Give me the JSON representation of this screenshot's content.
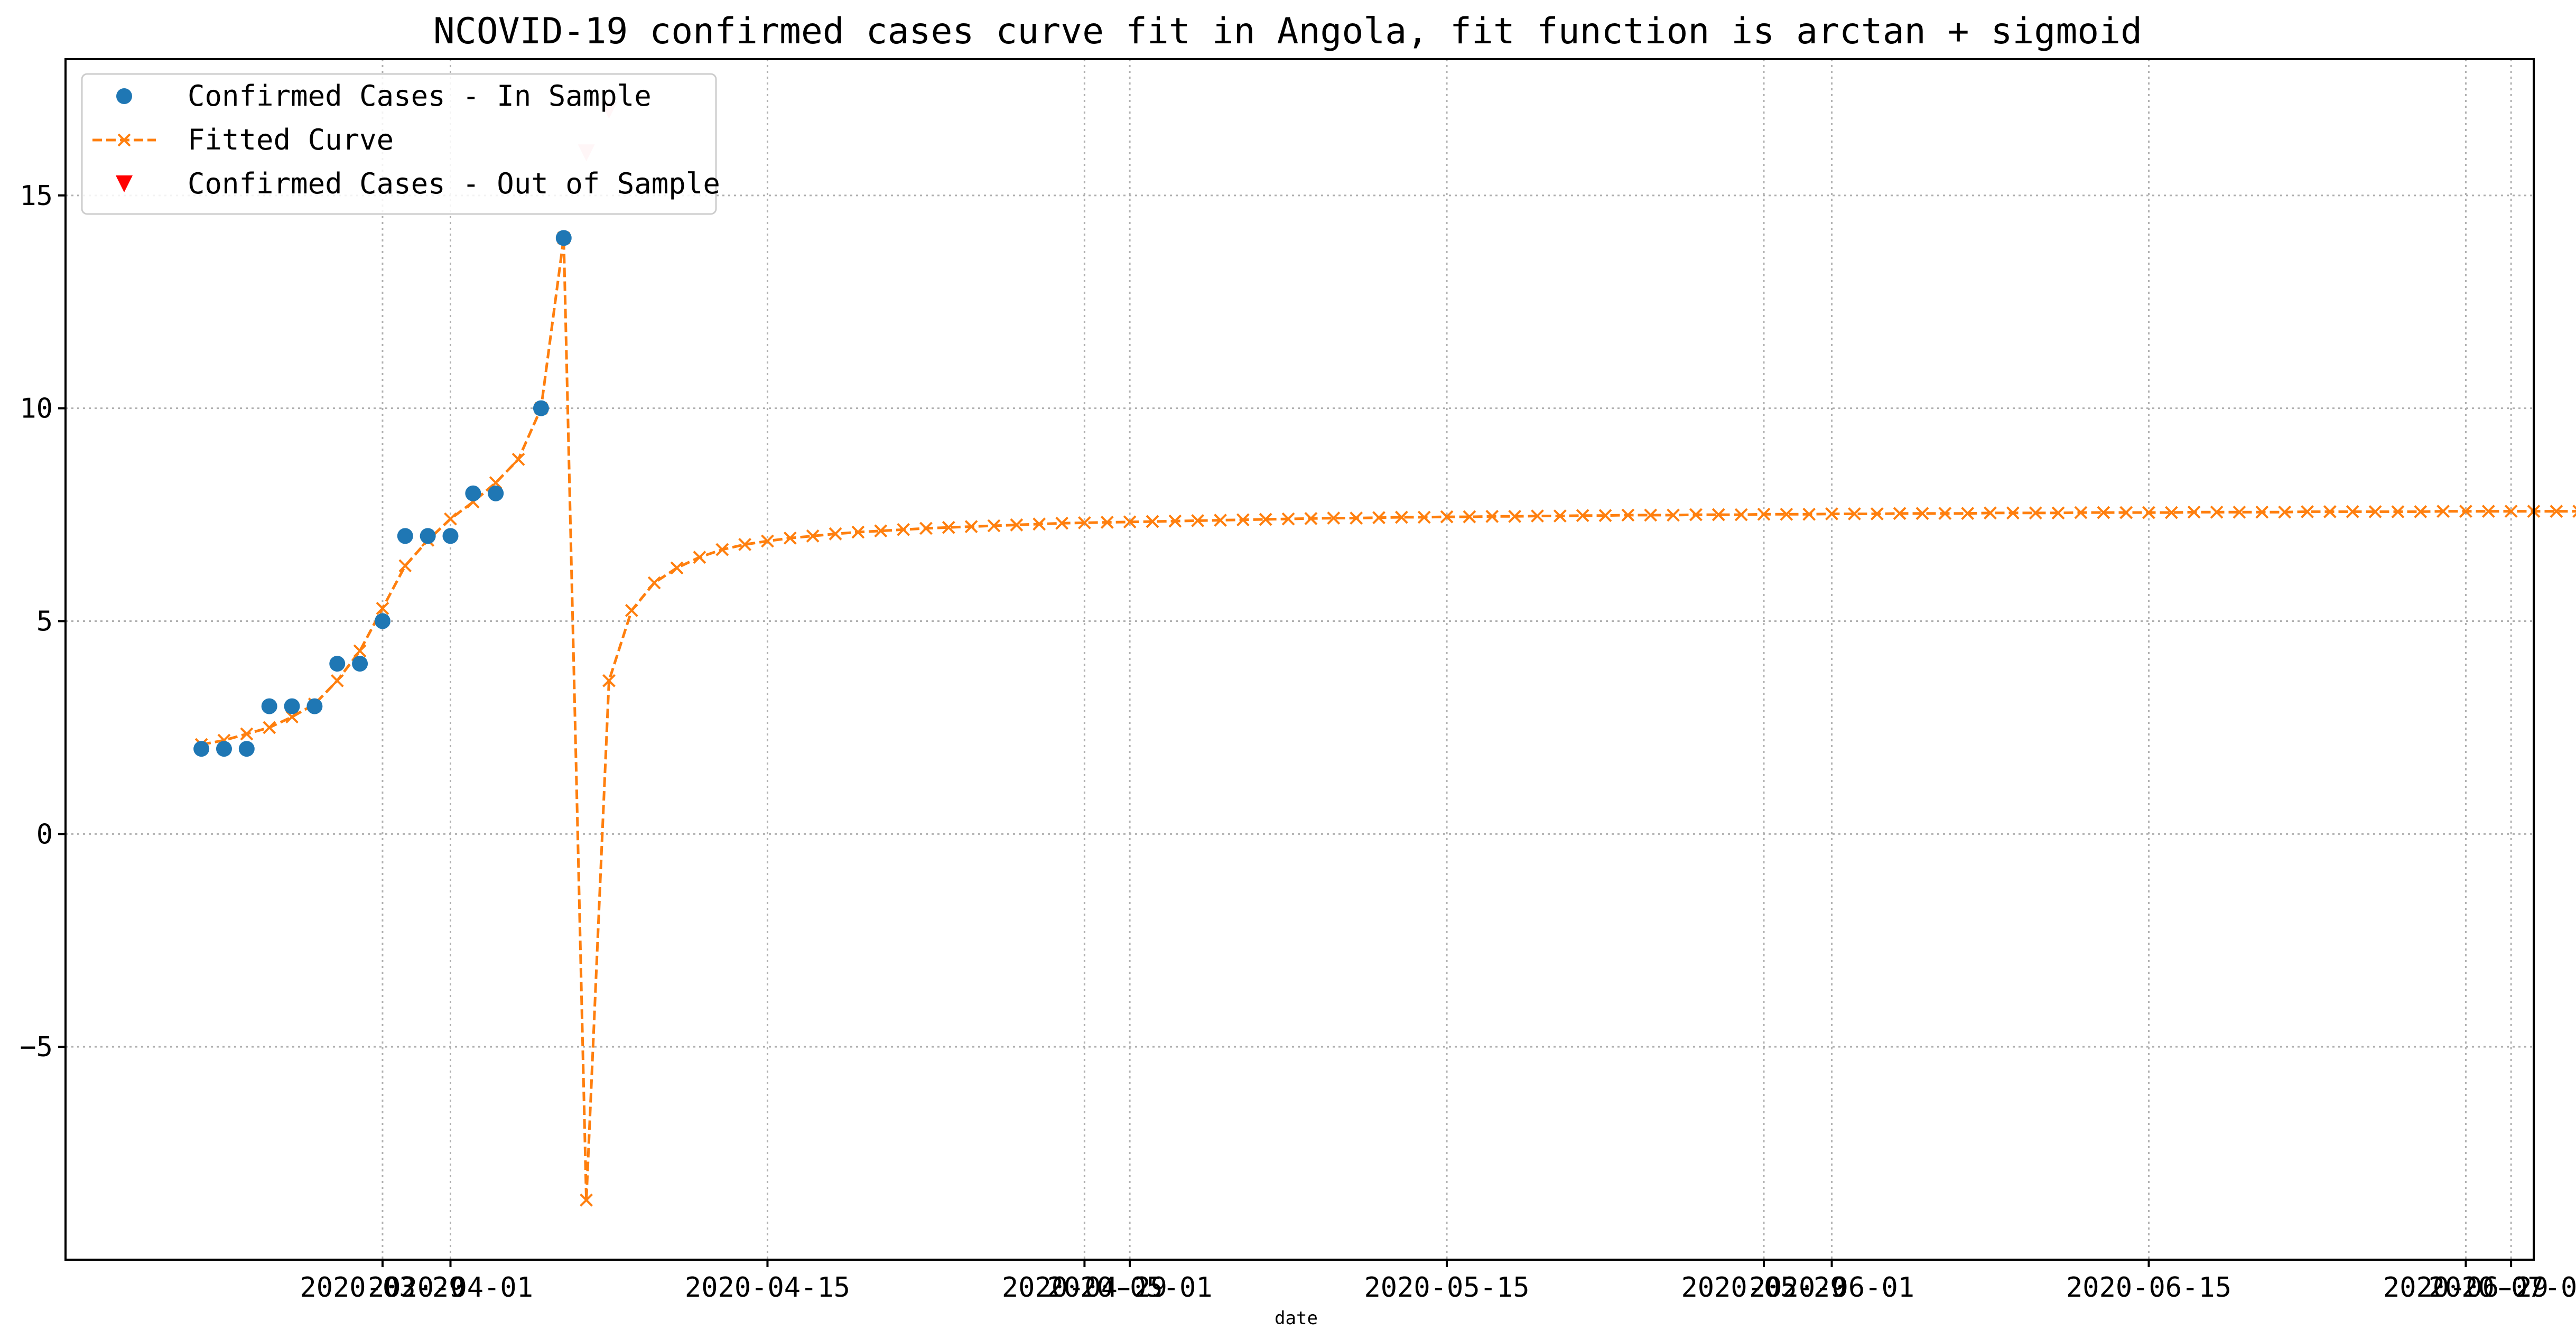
{
  "chart_data": {
    "type": "line",
    "title": "NCOVID-19 confirmed cases curve fit in Angola, fit function is arctan + sigmoid",
    "xlabel": "date",
    "ylabel": "",
    "xlim": [
      "2020-03-15",
      "2020-07-02"
    ],
    "ylim": [
      -10,
      18.2
    ],
    "grid": true,
    "legend_position": "top-left",
    "x_ticks": [
      "2020-03-29",
      "2020-04-01",
      "2020-04-15",
      "2020-04-29",
      "2020-05-01",
      "2020-05-15",
      "2020-05-29",
      "2020-06-01",
      "2020-06-15",
      "2020-06-29",
      "2020-07-01"
    ],
    "y_ticks": [
      -5,
      0,
      5,
      10,
      15
    ],
    "y_tick_labels": [
      "−5",
      "0",
      "5",
      "10",
      "15"
    ],
    "legend": [
      "Confirmed Cases - In Sample",
      "Fitted Curve",
      "Confirmed Cases - Out of Sample"
    ],
    "colors": {
      "in_sample": "#1f77b4",
      "fitted": "#ff7f0e",
      "out_of_sample": "#ff0000",
      "out_of_sample_faded": "#ffc0cb"
    },
    "series": [
      {
        "name": "Confirmed Cases - In Sample",
        "style": "markers-circle",
        "x": [
          "2020-03-21",
          "2020-03-22",
          "2020-03-23",
          "2020-03-24",
          "2020-03-25",
          "2020-03-26",
          "2020-03-27",
          "2020-03-28",
          "2020-03-29",
          "2020-03-30",
          "2020-03-31",
          "2020-04-01",
          "2020-04-02",
          "2020-04-03",
          "2020-04-05",
          "2020-04-06"
        ],
        "y": [
          2,
          2,
          2,
          3,
          3,
          3,
          4,
          4,
          5,
          7,
          7,
          7,
          8,
          8,
          10,
          14
        ]
      },
      {
        "name": "Fitted Curve",
        "style": "dashed-line-x-markers",
        "start_date": "2020-03-21",
        "y": [
          2.1,
          2.2,
          2.35,
          2.5,
          2.75,
          3.05,
          3.6,
          4.3,
          5.3,
          6.3,
          6.9,
          7.4,
          7.8,
          8.25,
          8.8,
          10.0,
          14.0,
          -8.6,
          3.6,
          5.25,
          5.9,
          6.25,
          6.5,
          6.68,
          6.8,
          6.88,
          6.95,
          7.0,
          7.05,
          7.09,
          7.12,
          7.15,
          7.18,
          7.2,
          7.22,
          7.24,
          7.26,
          7.28,
          7.3,
          7.31,
          7.32,
          7.33,
          7.34,
          7.35,
          7.36,
          7.37,
          7.38,
          7.39,
          7.4,
          7.41,
          7.42,
          7.42,
          7.43,
          7.44,
          7.44,
          7.45,
          7.45,
          7.46,
          7.46,
          7.47,
          7.47,
          7.48,
          7.48,
          7.49,
          7.49,
          7.49,
          7.5,
          7.5,
          7.5,
          7.51,
          7.51,
          7.51,
          7.52,
          7.52,
          7.52,
          7.53,
          7.53,
          7.53,
          7.53,
          7.54,
          7.54,
          7.54,
          7.54,
          7.55,
          7.55,
          7.55,
          7.55,
          7.55,
          7.56,
          7.56,
          7.56,
          7.56,
          7.56,
          7.57,
          7.57,
          7.57,
          7.57,
          7.57,
          7.57,
          7.58,
          7.58,
          7.58,
          7.58,
          7.58,
          7.58,
          7.58,
          7.59,
          7.59,
          7.59,
          7.59,
          7.59,
          7.59,
          7.59,
          7.59,
          7.6,
          7.6,
          7.6,
          7.6,
          7.6,
          7.6,
          7.6,
          7.6,
          7.6,
          7.6,
          7.61,
          7.61
        ]
      },
      {
        "name": "Confirmed Cases - Out of Sample",
        "style": "markers-triangle-down",
        "x": [
          "2020-04-07",
          "2020-04-08"
        ],
        "y": [
          16,
          17
        ]
      }
    ]
  }
}
